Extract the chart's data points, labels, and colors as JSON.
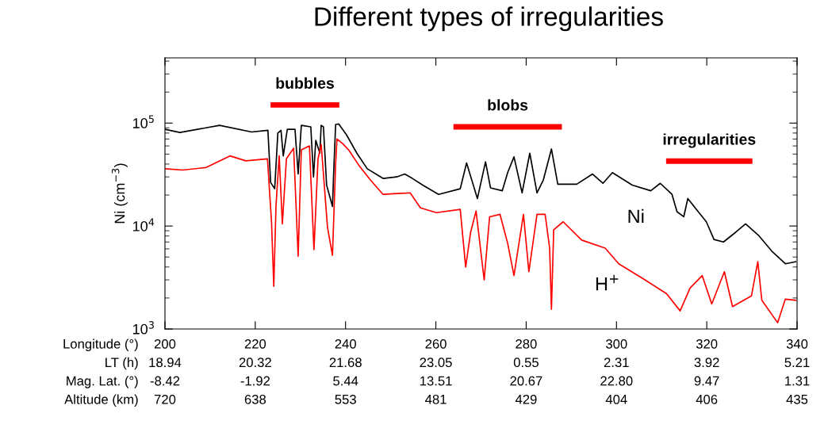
{
  "chart_data": {
    "type": "line",
    "title": "Different types of irregularities",
    "ylabel": "Ni (cm$^{−3}$)",
    "log": "y",
    "grid": false,
    "xlim": [
      200,
      340
    ],
    "ylim": [
      1000,
      430000
    ],
    "xticks": [
      200,
      220,
      240,
      260,
      280,
      300,
      320,
      340
    ],
    "yticks": [
      {
        "value": 1000,
        "label": "10$^{3}$"
      },
      {
        "value": 10000,
        "label": "10$^{4}$"
      },
      {
        "value": 100000,
        "label": "10$^{5}$"
      }
    ],
    "series": [
      {
        "color": "#000000",
        "x": [
          200,
          203.3,
          212.1,
          219.2,
          222.8,
          223.4,
          224.3,
          225.0,
          225.7,
          226.2,
          227.1,
          228.8,
          229.5,
          230.2,
          232.3,
          232.9,
          233.4,
          234.3,
          234.6,
          235.1,
          235.8,
          237.1,
          237.4,
          237.8,
          238.5,
          240.2,
          242.5,
          244.8,
          248.3,
          251.3,
          253.1,
          254.8,
          257.1,
          260.6,
          265.4,
          266.8,
          269.2,
          271.0,
          272.1,
          274.7,
          275.9,
          277.3,
          279.1,
          280.8,
          282.4,
          283.8,
          285.6,
          287.0,
          291.2,
          294.7,
          297.0,
          299.1,
          303.5,
          307.6,
          309.7,
          312.3,
          313.4,
          314.9,
          315.8,
          318.1,
          319.9,
          321.6,
          323.7,
          326.4,
          328.6,
          331.6,
          334.4,
          337.4,
          339.7
        ],
        "values": [
          87000,
          81000,
          95000,
          82000,
          85000,
          26500,
          23000,
          80000,
          85000,
          48000,
          87000,
          87000,
          32000,
          95000,
          92000,
          30000,
          68000,
          51000,
          95000,
          92000,
          25000,
          15500,
          36000,
          97000,
          98000,
          77000,
          51000,
          36000,
          29000,
          30000,
          32000,
          29000,
          25000,
          20300,
          23000,
          41000,
          18500,
          42000,
          23500,
          22000,
          33000,
          47000,
          21000,
          51000,
          21000,
          28000,
          56000,
          25500,
          25500,
          32000,
          26000,
          33000,
          25000,
          22000,
          26000,
          20300,
          13800,
          12300,
          18500,
          13800,
          11000,
          7400,
          7000,
          8700,
          10500,
          8000,
          5700,
          4300,
          4500
        ]
      },
      {
        "color": "#ff0000",
        "x": [
          200,
          203.9,
          209.1,
          214.4,
          217.9,
          222.7,
          223.6,
          224.1,
          224.6,
          225.3,
          226.0,
          226.9,
          228.5,
          229.5,
          230.2,
          232.0,
          233.0,
          233.9,
          234.6,
          236.0,
          237.1,
          237.8,
          238.1,
          239.4,
          240.8,
          243.1,
          245.5,
          248.3,
          254.3,
          256.6,
          260.1,
          265.4,
          266.6,
          267.7,
          268.9,
          270.7,
          271.9,
          274.2,
          275.9,
          277.3,
          279.4,
          280.6,
          282.4,
          284.2,
          285.2,
          285.6,
          286.1,
          288.2,
          292.3,
          297.5,
          300.5,
          306.3,
          311.1,
          314.1,
          316.3,
          319.0,
          321.1,
          323.9,
          325.7,
          329.9,
          331.3,
          332.2,
          335.7,
          337.4,
          339.7
        ],
        "values": [
          36000,
          35000,
          37000,
          48000,
          43000,
          45000,
          11000,
          2600,
          16000,
          48000,
          10500,
          45000,
          57000,
          5100,
          55000,
          60000,
          5900,
          45000,
          62000,
          9700,
          5200,
          40000,
          70000,
          63000,
          54000,
          38000,
          28000,
          20300,
          21000,
          15000,
          13500,
          14500,
          4000,
          8700,
          14000,
          3000,
          12300,
          13000,
          6800,
          3300,
          13000,
          3600,
          13000,
          13000,
          6100,
          1550,
          9200,
          11000,
          7300,
          6100,
          4300,
          3000,
          2200,
          1500,
          2500,
          3300,
          1750,
          3600,
          1650,
          2100,
          4500,
          1900,
          1150,
          1950,
          1900
        ]
      },
      {
        "color": "#ff0000",
        "x": [
          224,
          238
        ],
        "values": [
          150000,
          150000
        ]
      },
      {
        "color": "#ff0000",
        "x": [
          264.5,
          287.3
        ],
        "values": [
          92000,
          92000
        ]
      },
      {
        "color": "#ff0000",
        "x": [
          311.6,
          329.5
        ],
        "values": [
          42700,
          42700
        ]
      }
    ],
    "annotations": [
      "bubbles",
      "blobs",
      "irregularities",
      "Ni",
      "H$^{+}$",
      "Longitude (°)",
      "LT (h)",
      "Mag. Lat. (°)",
      "Altitude (km)",
      "18.94",
      "20.32",
      "21.68",
      "23.05",
      "0.55",
      "2.31",
      "3.92",
      "5.21",
      "-8.42",
      "-1.92",
      "5.44",
      "13.51",
      "20.67",
      "22.80",
      "9.47",
      "1.31",
      "720",
      "638",
      "553",
      "481",
      "429",
      "404",
      "406",
      "435"
    ]
  }
}
